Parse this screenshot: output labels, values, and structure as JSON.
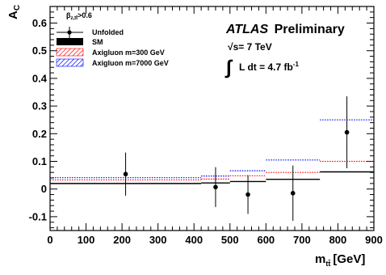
{
  "chart_data": {
    "type": "scatter",
    "xlabel_main": "m",
    "xlabel_sub": "tt̄",
    "xlabel_unit": "[GeV]",
    "ylabel_main": "A",
    "ylabel_sub": "C",
    "xlim": [
      0,
      900
    ],
    "ylim": [
      -0.15,
      0.66
    ],
    "x_ticks": [
      0,
      100,
      200,
      300,
      400,
      500,
      600,
      700,
      800,
      900
    ],
    "y_ticks": [
      -0.1,
      0,
      0.1,
      0.2,
      0.3,
      0.4,
      0.5,
      0.6
    ],
    "y_tick_labels": [
      "-0.1",
      "0",
      "0.1",
      "0.2",
      "0.3",
      "0.4",
      "0.5",
      "0.6"
    ],
    "grid": false,
    "legend_title": "β",
    "legend_title_sub": "z,tt̄",
    "legend_title_cond": ">0.6",
    "legend": [
      {
        "label": "Unfolded",
        "kind": "marker",
        "color": "#000000"
      },
      {
        "label": "SM",
        "kind": "fill",
        "color": "#000000"
      },
      {
        "label": "Axigluon m=300 GeV",
        "kind": "hatch",
        "color": "#ff0000"
      },
      {
        "label": "Axigluon m=7000 GeV",
        "kind": "hatch",
        "color": "#0000ff"
      }
    ],
    "bins": [
      [
        0,
        420
      ],
      [
        420,
        500
      ],
      [
        500,
        600
      ],
      [
        600,
        750
      ],
      [
        750,
        900
      ]
    ],
    "series": [
      {
        "name": "Unfolded",
        "x": [
          210,
          460,
          550,
          675,
          825
        ],
        "y": [
          0.054,
          0.007,
          -0.02,
          -0.015,
          0.205
        ],
        "yerr": [
          0.078,
          0.072,
          0.07,
          0.1,
          0.13
        ]
      },
      {
        "name": "SM",
        "values": [
          0.02,
          0.022,
          0.027,
          0.035,
          0.062
        ]
      },
      {
        "name": "Axigluon m=300 GeV",
        "values": [
          0.033,
          0.036,
          0.048,
          0.06,
          0.1
        ]
      },
      {
        "name": "Axigluon m=7000 GeV",
        "values": [
          0.041,
          0.047,
          0.066,
          0.105,
          0.25
        ]
      }
    ],
    "annotations": {
      "atlas": "ATLAS",
      "preliminary": "Preliminary",
      "energy": "√s= 7 TeV",
      "lumi_integral": "∫",
      "lumi": "L dt =  4.7  fb",
      "lumi_exp": "-1"
    }
  }
}
